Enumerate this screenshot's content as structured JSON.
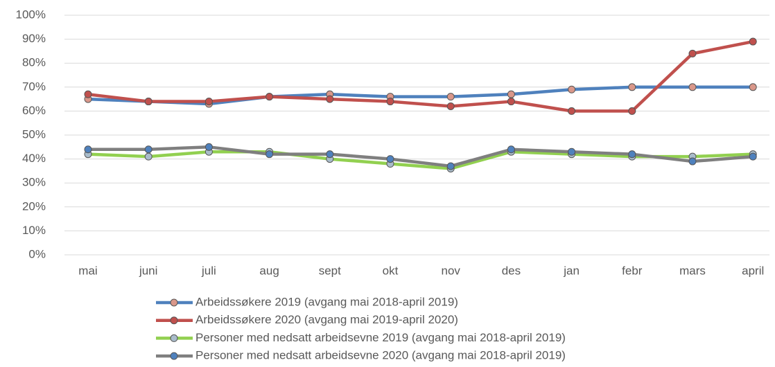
{
  "chart_data": {
    "type": "line",
    "categories": [
      "mai",
      "juni",
      "juli",
      "aug",
      "sept",
      "okt",
      "nov",
      "des",
      "jan",
      "febr",
      "mars",
      "april"
    ],
    "series": [
      {
        "name": "Arbeidssøkere 2019 (avgang mai 2018-april 2019)",
        "color": "#4f81bd",
        "marker_color": "#d9978a",
        "values": [
          65,
          64,
          63,
          66,
          67,
          66,
          66,
          67,
          69,
          70,
          70,
          70
        ]
      },
      {
        "name": "Arbeidssøkere 2020 (avgang mai 2019-april 2020)",
        "color": "#c0504d",
        "marker_color": "#c0504d",
        "values": [
          67,
          64,
          64,
          66,
          65,
          64,
          62,
          64,
          60,
          60,
          84,
          89
        ]
      },
      {
        "name": "Personer med nedsatt arbeidsevne 2019 (avgang mai 2018-april 2019)",
        "color": "#92d050",
        "marker_color": "#a9bccb",
        "values": [
          42,
          41,
          43,
          43,
          40,
          38,
          36,
          43,
          42,
          41,
          41,
          42
        ]
      },
      {
        "name": "Personer med nedsatt arbeidsevne 2020 (avgang mai 2018-april 2019)",
        "color": "#7f7f7f",
        "marker_color": "#4f81bd",
        "values": [
          44,
          44,
          45,
          42,
          42,
          40,
          37,
          44,
          43,
          42,
          39,
          41
        ]
      }
    ],
    "ylim": [
      0,
      100
    ],
    "yticks": [
      {
        "value": 0,
        "label": "0%"
      },
      {
        "value": 10,
        "label": "10%"
      },
      {
        "value": 20,
        "label": "20%"
      },
      {
        "value": 30,
        "label": "30%"
      },
      {
        "value": 40,
        "label": "40%"
      },
      {
        "value": 50,
        "label": "50%"
      },
      {
        "value": 60,
        "label": "60%"
      },
      {
        "value": 70,
        "label": "70%"
      },
      {
        "value": 80,
        "label": "80%"
      },
      {
        "value": 90,
        "label": "90%"
      },
      {
        "value": 100,
        "label": "100%"
      }
    ],
    "grid": true
  }
}
